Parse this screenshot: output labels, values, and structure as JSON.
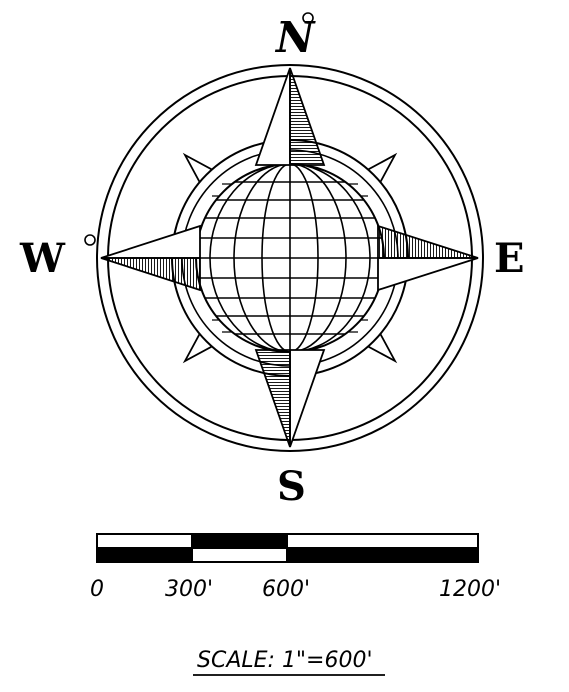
{
  "compass": {
    "north": "N",
    "south": "S",
    "east": "E",
    "west": "W"
  },
  "scale_bar": {
    "labels": [
      "0",
      "300'",
      "600'",
      "1200'"
    ],
    "caption": "SCALE:  1\"=600'"
  },
  "colors": {
    "ink": "#000000",
    "paper": "#ffffff"
  }
}
